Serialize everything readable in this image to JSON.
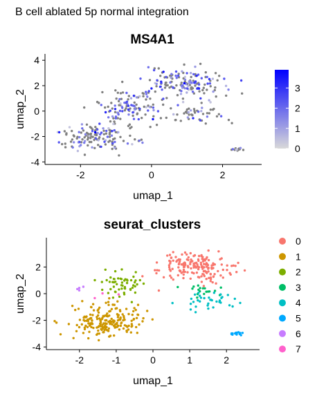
{
  "figure_title": "B cell ablated 5p normal integration",
  "chart_data": [
    {
      "type": "scatter",
      "title": "MS4A1",
      "xlabel": "umap_1",
      "ylabel": "umap_2",
      "xlim": [
        -3.0,
        3.1
      ],
      "ylim": [
        -4.2,
        4.5
      ],
      "xticks": [
        -2,
        0,
        2
      ],
      "yticks": [
        -4,
        -2,
        0,
        2,
        4
      ],
      "grid": false,
      "color_scale": {
        "type": "continuous",
        "low_color": "#d9d9d9",
        "high_color": "#0000ff",
        "zero_color": "#808080",
        "min": 0,
        "max": 3.9,
        "breaks": [
          0,
          1,
          2,
          3
        ]
      },
      "legend_position": "right",
      "point_count_shown": "approximately 500 cells (estimated)",
      "regions": [
        {
          "center": [
            1.0,
            2.2
          ],
          "spread": [
            1.0,
            0.9
          ],
          "n": 150,
          "expr_frac": 0.45,
          "level": 2.0
        },
        {
          "center": [
            -1.6,
            -2.0
          ],
          "spread": [
            0.8,
            1.0
          ],
          "n": 140,
          "expr_frac": 0.35,
          "level": 1.6
        },
        {
          "center": [
            -0.5,
            0.3
          ],
          "spread": [
            0.8,
            1.1
          ],
          "n": 120,
          "expr_frac": 0.4,
          "level": 1.8
        },
        {
          "center": [
            1.2,
            -0.2
          ],
          "spread": [
            0.7,
            0.7
          ],
          "n": 50,
          "expr_frac": 0.25,
          "level": 1.2
        },
        {
          "center": [
            2.4,
            -3.0
          ],
          "spread": [
            0.15,
            0.1
          ],
          "n": 14,
          "expr_frac": 0.5,
          "level": 1.0
        }
      ]
    },
    {
      "type": "scatter",
      "title": "seurat_clusters",
      "xlabel": "umap_1",
      "ylabel": "umap_2",
      "xlim": [
        -2.9,
        2.9
      ],
      "ylim": [
        -4.2,
        4.2
      ],
      "xticks": [
        -2,
        -1,
        0,
        1,
        2
      ],
      "yticks": [
        -4,
        -2,
        0,
        2
      ],
      "grid": false,
      "legend_position": "right",
      "series": [
        {
          "name": "0",
          "color": "#F8766D",
          "center": [
            1.2,
            2.0
          ],
          "spread": [
            0.8,
            0.9
          ],
          "n": 170
        },
        {
          "name": "1",
          "color": "#CD9600",
          "center": [
            -1.3,
            -2.1
          ],
          "spread": [
            0.8,
            1.0
          ],
          "n": 200
        },
        {
          "name": "2",
          "color": "#7CAE00",
          "center": [
            -0.9,
            0.6
          ],
          "spread": [
            0.5,
            0.9
          ],
          "n": 55
        },
        {
          "name": "3",
          "color": "#00BE67",
          "center": [
            1.3,
            0.3
          ],
          "spread": [
            0.5,
            0.5
          ],
          "n": 18
        },
        {
          "name": "4",
          "color": "#00BFC4",
          "center": [
            1.5,
            -0.5
          ],
          "spread": [
            0.8,
            0.6
          ],
          "n": 35
        },
        {
          "name": "5",
          "color": "#00A9FF",
          "center": [
            2.3,
            -3.0
          ],
          "spread": [
            0.15,
            0.12
          ],
          "n": 14
        },
        {
          "name": "6",
          "color": "#C77CFF",
          "center": [
            -1.6,
            0.4
          ],
          "spread": [
            0.8,
            0.6
          ],
          "n": 4
        },
        {
          "name": "7",
          "color": "#FF61CC",
          "center": [
            -1.2,
            -0.3
          ],
          "spread": [
            0.6,
            0.5
          ],
          "n": 3
        }
      ]
    }
  ]
}
